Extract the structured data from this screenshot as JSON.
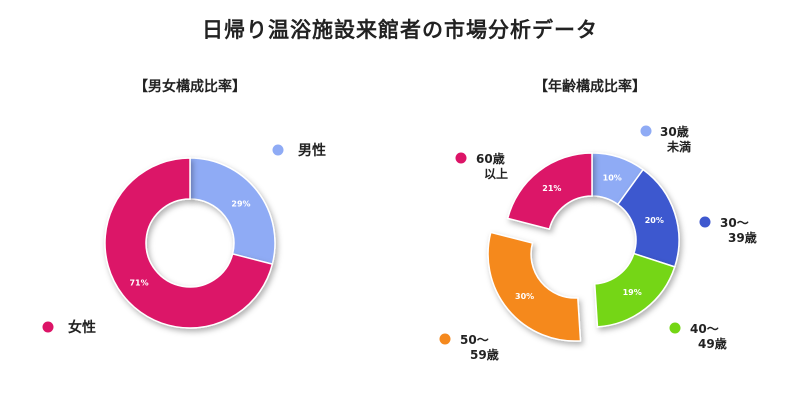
{
  "title": "日帰り温浴施設来館者の市場分析データ",
  "chart_data": [
    {
      "type": "pie",
      "title": "【男女構成比率】",
      "unit": "%",
      "slices": [
        {
          "name": "男性",
          "value": 29,
          "label": "29%",
          "color": "#8fabf5"
        },
        {
          "name": "女性",
          "value": 71,
          "label": "71%",
          "color": "#dc1467"
        }
      ]
    },
    {
      "type": "pie",
      "title": "【年齢構成比率】",
      "unit": "%",
      "slices": [
        {
          "name": "30歳未満",
          "value": 10,
          "label": "10%",
          "color": "#8fabf5"
        },
        {
          "name": "30～39歳",
          "value": 20,
          "label": "20%",
          "color": "#3e58cf"
        },
        {
          "name": "40～49歳",
          "value": 19,
          "label": "19%",
          "color": "#74d614"
        },
        {
          "name": "50～59歳",
          "value": 30,
          "label": "30%",
          "color": "#f5891e"
        },
        {
          "name": "60歳以上",
          "value": 21,
          "label": "21%",
          "color": "#dc1467"
        }
      ]
    }
  ],
  "legend_left": [
    {
      "lines": [
        "男性"
      ],
      "color": "#8fabf5"
    },
    {
      "lines": [
        "女性"
      ],
      "color": "#dc1467"
    }
  ],
  "legend_right": [
    {
      "lines": [
        "30歳",
        "未満"
      ],
      "color": "#8fabf5"
    },
    {
      "lines": [
        "30～",
        "39歳"
      ],
      "color": "#3e58cf"
    },
    {
      "lines": [
        "40～",
        "49歳"
      ],
      "color": "#74d614"
    },
    {
      "lines": [
        "50～",
        "59歳"
      ],
      "color": "#f5891e"
    },
    {
      "lines": [
        "60歳",
        "以上"
      ],
      "color": "#dc1467"
    }
  ]
}
